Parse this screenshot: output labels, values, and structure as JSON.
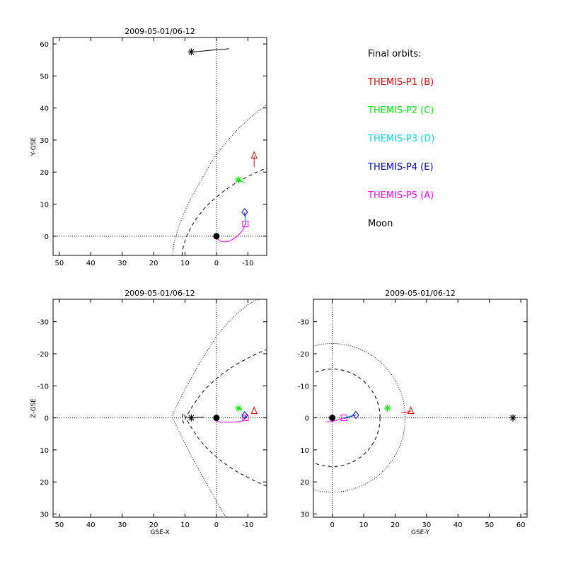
{
  "chart_data": [
    {
      "type": "line",
      "title": "2009-05-01/06-12",
      "xlabel": "",
      "ylabel": "Y-GSE",
      "xlim": [
        52,
        -16
      ],
      "ylim": [
        62,
        -6
      ],
      "x_ticks": [
        50,
        40,
        30,
        20,
        10,
        0,
        -10
      ],
      "y_ticks": [
        0,
        10,
        20,
        30,
        40,
        50,
        60
      ],
      "x_tick_labels": [
        "50",
        "40",
        "30",
        "20",
        "10",
        "0",
        "-10"
      ],
      "y_tick_labels": [
        "0",
        "10",
        "20",
        "30",
        "40",
        "50",
        "60"
      ],
      "reference_lines": [
        {
          "axis": "x",
          "value": 0,
          "style": "dotted"
        },
        {
          "axis": "y",
          "value": 0,
          "style": "dotted"
        }
      ],
      "series": [
        {
          "style": "dashed",
          "color": "#000000",
          "x": [
            11,
            10.5,
            9.5,
            8,
            6,
            4,
            2,
            0,
            -2,
            -4,
            -6,
            -8,
            -10,
            -12,
            -14,
            -16
          ],
          "y": [
            -6,
            -3,
            0,
            3,
            6,
            8.5,
            10.5,
            12.2,
            13.8,
            15.2,
            16.5,
            17.6,
            18.6,
            19.6,
            20.5,
            21.3
          ]
        },
        {
          "style": "dotted",
          "color": "#000000",
          "x": [
            14,
            13.5,
            12,
            10,
            8,
            6,
            4,
            2,
            0,
            -2,
            -4,
            -6,
            -8,
            -10,
            -12,
            -14,
            -16
          ],
          "y": [
            -6,
            -2,
            3,
            8,
            12,
            15.5,
            19,
            22.5,
            25.5,
            28,
            30.3,
            32.5,
            34.5,
            36.3,
            38,
            39.5,
            41
          ]
        },
        {
          "name_ref": "THEMIS-P5 (A)",
          "color": "#ff00ff",
          "marker": "square",
          "x": [
            0,
            -1,
            -2.5,
            -4,
            -5.5,
            -7,
            -8.3,
            -9.2
          ],
          "y": [
            -0.5,
            -1.5,
            -1.8,
            -1.6,
            -0.8,
            0.3,
            1.8,
            3.8
          ]
        },
        {
          "name_ref": "THEMIS-P4 (E)",
          "color": "#0000cc",
          "marker": "diamond",
          "x": [
            -9.2,
            -9.2,
            -9.2,
            -9.0,
            -9.0
          ],
          "y": [
            3.8,
            5,
            6,
            7,
            7.5
          ]
        },
        {
          "name_ref": "THEMIS-P3 (D)",
          "color": "#00dddd",
          "marker": "none",
          "x": [
            -9.2,
            -9.2
          ],
          "y": [
            4.2,
            6.0
          ]
        },
        {
          "name_ref": "THEMIS-P2 (C)",
          "color": "#00ee00",
          "marker": "asterisk",
          "x": [
            -9,
            -8,
            -7
          ],
          "y": [
            16.7,
            17.1,
            17.6
          ]
        },
        {
          "name_ref": "THEMIS-P1 (B)",
          "color": "#ee0000",
          "marker": "triangle",
          "x": [
            -12,
            -12,
            -12
          ],
          "y": [
            21.5,
            23,
            25
          ]
        },
        {
          "name_ref": "Moon",
          "color": "#000000",
          "marker": "asterisk",
          "x": [
            -4,
            -2,
            0,
            2,
            4,
            6,
            8
          ],
          "y": [
            58.5,
            58.3,
            58.2,
            58,
            57.8,
            57.6,
            57.5
          ]
        }
      ],
      "earth": {
        "x": 0,
        "y": 0
      }
    },
    {
      "type": "line",
      "title": "2009-05-01/06-12",
      "xlabel": "GSE-X",
      "ylabel": "Z-GSE",
      "xlim": [
        52,
        -16
      ],
      "ylim": [
        -37,
        31
      ],
      "x_ticks": [
        50,
        40,
        30,
        20,
        10,
        0,
        -10
      ],
      "y_ticks": [
        30,
        20,
        10,
        0,
        -10,
        -20,
        -30
      ],
      "x_tick_labels": [
        "50",
        "40",
        "30",
        "20",
        "10",
        "0",
        "-10"
      ],
      "y_tick_labels": [
        "30",
        "20",
        "10",
        "0",
        "-10",
        "-20",
        "-30"
      ],
      "reference_lines": [
        {
          "axis": "x",
          "value": 0,
          "style": "dotted"
        },
        {
          "axis": "y",
          "value": 0,
          "style": "dotted"
        }
      ],
      "series": [
        {
          "style": "dashed",
          "color": "#000000",
          "x": [
            -16,
            -14,
            -12,
            -10,
            -8,
            -6,
            -4,
            -2,
            0,
            2,
            4,
            6,
            8,
            9.5,
            10.5,
            11,
            10.5,
            9.5,
            8,
            6,
            4,
            2,
            0,
            -2,
            -4,
            -6,
            -8,
            -10,
            -12,
            -14,
            -16
          ],
          "y": [
            21.3,
            20.5,
            19.6,
            18.6,
            17.6,
            16.5,
            15.2,
            13.8,
            12.2,
            10.5,
            8.5,
            6,
            3,
            0.5,
            -1.5,
            0,
            1.5,
            -0.5,
            -3,
            -6,
            -8.5,
            -10.5,
            -12.2,
            -13.8,
            -15.2,
            -16.5,
            -17.6,
            -18.6,
            -19.6,
            -20.5,
            -21.3
          ]
        },
        {
          "style": "dotted",
          "color": "#000000",
          "x": [
            -3,
            -2,
            0,
            2,
            4,
            6,
            8,
            10,
            12,
            13.5,
            14,
            13.5,
            12,
            10,
            8,
            6,
            4,
            2,
            0,
            -2,
            -4,
            -6,
            -8,
            -10,
            -12,
            -14,
            -16
          ],
          "y": [
            31,
            29.5,
            26,
            22.5,
            19,
            15.5,
            12,
            8,
            4,
            1,
            0,
            -2,
            -5,
            -9,
            -12.5,
            -16,
            -19.3,
            -22.3,
            -25.5,
            -27.8,
            -30,
            -32,
            -33.8,
            -35.3,
            -36.5,
            -37,
            -37
          ]
        },
        {
          "name_ref": "THEMIS-P5 (A)",
          "color": "#ff00ff",
          "marker": "square",
          "x": [
            0,
            -1,
            -2.5,
            -4,
            -5.5,
            -7,
            -8.3,
            -9.2
          ],
          "y": [
            1,
            1.3,
            1.4,
            1.4,
            1.3,
            1.2,
            1.0,
            0
          ]
        },
        {
          "name_ref": "THEMIS-P4 (E)",
          "color": "#0000cc",
          "marker": "diamond",
          "x": [
            -9.2,
            -9.1,
            -9.0
          ],
          "y": [
            0,
            -0.4,
            -0.8
          ]
        },
        {
          "name_ref": "THEMIS-P2 (C)",
          "color": "#00ee00",
          "marker": "asterisk",
          "x": [
            -8,
            -7.5,
            -7
          ],
          "y": [
            -2.5,
            -2.8,
            -3
          ]
        },
        {
          "name_ref": "THEMIS-P1 (B)",
          "color": "#ee0000",
          "marker": "triangle",
          "x": [
            -12,
            -12,
            -12
          ],
          "y": [
            -2,
            -2,
            -2
          ]
        },
        {
          "name_ref": "Moon",
          "color": "#000000",
          "marker": "asterisk",
          "x": [
            4,
            6,
            8
          ],
          "y": [
            -0.2,
            -0.1,
            0
          ]
        }
      ],
      "earth": {
        "x": 0,
        "y": 0
      }
    },
    {
      "type": "line",
      "title": "2009-05-01/06-12",
      "xlabel": "GSE-Y",
      "ylabel": "",
      "xlim": [
        -6,
        62
      ],
      "ylim": [
        -37,
        31
      ],
      "x_ticks": [
        0,
        10,
        20,
        30,
        40,
        50,
        60
      ],
      "y_ticks": [
        30,
        20,
        10,
        0,
        -10,
        -20,
        -30
      ],
      "x_tick_labels": [
        "0",
        "10",
        "20",
        "30",
        "40",
        "50",
        "60"
      ],
      "y_tick_labels": [
        "30",
        "20",
        "10",
        "0",
        "-10",
        "-20",
        "-30"
      ],
      "reference_lines": [
        {
          "axis": "x",
          "value": 0,
          "style": "dotted"
        },
        {
          "axis": "y",
          "value": 0,
          "style": "dotted"
        }
      ],
      "circles": [
        {
          "style": "dashed",
          "cx": 0,
          "cy": 0,
          "r": 15.2
        },
        {
          "style": "dotted",
          "cx": 0,
          "cy": 0,
          "r": 23.2
        }
      ],
      "series": [
        {
          "name_ref": "THEMIS-P5 (A)",
          "color": "#ff00ff",
          "marker": "square",
          "x": [
            -2,
            -1,
            0,
            1,
            2,
            3.7
          ],
          "y": [
            1.2,
            1.2,
            1.1,
            0.9,
            0.6,
            0
          ]
        },
        {
          "name_ref": "THEMIS-P3 (D)",
          "color": "#00dddd",
          "marker": "none",
          "x": [
            3.7,
            5,
            6.3
          ],
          "y": [
            0,
            -0.4,
            -0.8
          ]
        },
        {
          "name_ref": "THEMIS-P4 (E)",
          "color": "#0000cc",
          "marker": "diamond",
          "x": [
            3.7,
            5.5,
            7.5
          ],
          "y": [
            0.2,
            -0.3,
            -0.9
          ]
        },
        {
          "name_ref": "THEMIS-P2 (C)",
          "color": "#00ee00",
          "marker": "asterisk",
          "x": [
            17.5,
            17.6,
            17.6
          ],
          "y": [
            -2.6,
            -2.8,
            -3
          ]
        },
        {
          "name_ref": "THEMIS-P1 (B)",
          "color": "#ee0000",
          "marker": "triangle",
          "x": [
            22,
            23.5,
            25
          ],
          "y": [
            -1.5,
            -1.7,
            -2
          ]
        },
        {
          "name_ref": "Moon",
          "color": "#000000",
          "marker": "asterisk",
          "x": [
            57.5
          ],
          "y": [
            0
          ]
        }
      ],
      "earth": {
        "x": 0,
        "y": 0
      }
    }
  ],
  "legend": {
    "heading": "Final orbits:",
    "entries": [
      {
        "label": "THEMIS-P1 (B)",
        "color": "#ee0000"
      },
      {
        "label": "THEMIS-P2 (C)",
        "color": "#00ee00"
      },
      {
        "label": "THEMIS-P3 (D)",
        "color": "#00dddd"
      },
      {
        "label": "THEMIS-P4 (E)",
        "color": "#0000cc"
      },
      {
        "label": "THEMIS-P5 (A)",
        "color": "#ff00ff"
      },
      {
        "label": "Moon",
        "color": "#000000"
      }
    ]
  }
}
